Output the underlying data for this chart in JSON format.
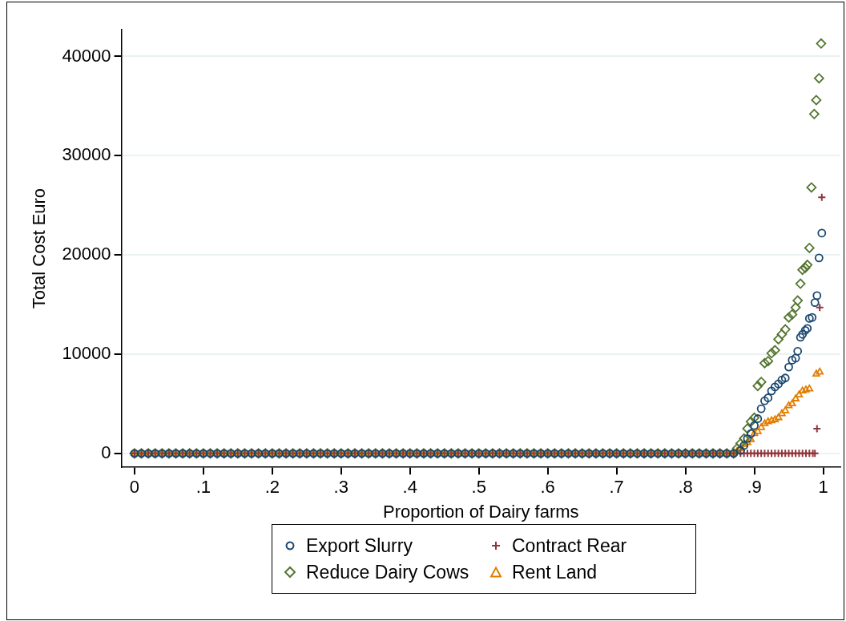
{
  "chart_data": {
    "type": "scatter",
    "xlabel": "Proportion of Dairy farms",
    "ylabel": "Total Cost Euro",
    "xlim": [
      -0.019,
      1.025
    ],
    "ylim": [
      -1400,
      42700
    ],
    "xticks": [
      0,
      {
        "value": 0.1,
        "label": ".1"
      },
      {
        "value": 0.2,
        "label": ".2"
      },
      {
        "value": 0.3,
        "label": ".3"
      },
      {
        "value": 0.4,
        "label": ".4"
      },
      {
        "value": 0.5,
        "label": ".5"
      },
      {
        "value": 0.6,
        "label": ".6"
      },
      {
        "value": 0.7,
        "label": ".7"
      },
      {
        "value": 0.8,
        "label": ".8"
      },
      {
        "value": 0.9,
        "label": ".9"
      },
      1
    ],
    "yticks": [
      0,
      10000,
      20000,
      30000,
      40000
    ],
    "grid": "y",
    "legend": "bottom",
    "series": [
      {
        "name": "Export Slurry",
        "color": "#1a476f",
        "marker": "circle",
        "x": [
          0,
          0.01,
          0.02,
          0.03,
          0.04,
          0.05,
          0.06,
          0.07,
          0.08,
          0.09,
          0.1,
          0.11,
          0.12,
          0.13,
          0.14,
          0.15,
          0.16,
          0.17,
          0.18,
          0.19,
          0.2,
          0.21,
          0.22,
          0.23,
          0.24,
          0.25,
          0.26,
          0.27,
          0.28,
          0.29,
          0.3,
          0.31,
          0.32,
          0.33,
          0.34,
          0.35,
          0.36,
          0.37,
          0.38,
          0.39,
          0.4,
          0.41,
          0.42,
          0.43,
          0.44,
          0.45,
          0.46,
          0.47,
          0.48,
          0.49,
          0.5,
          0.51,
          0.52,
          0.53,
          0.54,
          0.55,
          0.56,
          0.57,
          0.58,
          0.59,
          0.6,
          0.61,
          0.62,
          0.63,
          0.64,
          0.65,
          0.66,
          0.67,
          0.68,
          0.69,
          0.7,
          0.71,
          0.72,
          0.73,
          0.74,
          0.75,
          0.76,
          0.77,
          0.78,
          0.79,
          0.8,
          0.81,
          0.82,
          0.83,
          0.84,
          0.85,
          0.86,
          0.87,
          0.88,
          0.885,
          0.89,
          0.895,
          0.9,
          0.905,
          0.91,
          0.915,
          0.92,
          0.925,
          0.93,
          0.935,
          0.94,
          0.945,
          0.95,
          0.955,
          0.96,
          0.963,
          0.967,
          0.97,
          0.974,
          0.977,
          0.98,
          0.984,
          0.988,
          0.991,
          0.994,
          0.998
        ],
        "values": [
          0,
          0,
          0,
          0,
          0,
          0,
          0,
          0,
          0,
          0,
          0,
          0,
          0,
          0,
          0,
          0,
          0,
          0,
          0,
          0,
          0,
          0,
          0,
          0,
          0,
          0,
          0,
          0,
          0,
          0,
          0,
          0,
          0,
          0,
          0,
          0,
          0,
          0,
          0,
          0,
          0,
          0,
          0,
          0,
          0,
          0,
          0,
          0,
          0,
          0,
          0,
          0,
          0,
          0,
          0,
          0,
          0,
          0,
          0,
          0,
          0,
          0,
          0,
          0,
          0,
          0,
          0,
          0,
          0,
          0,
          0,
          0,
          0,
          0,
          0,
          0,
          0,
          0,
          0,
          0,
          0,
          0,
          0,
          0,
          0,
          0,
          0,
          0,
          300,
          800,
          1500,
          2000,
          2800,
          3500,
          4500,
          5300,
          5600,
          6300,
          6700,
          7000,
          7400,
          7600,
          8700,
          9400,
          9600,
          10300,
          11700,
          12000,
          12400,
          12600,
          13600,
          13700,
          15200,
          15900,
          19700,
          22200
        ]
      },
      {
        "name": "Reduce Dairy Cows",
        "color": "#55752f",
        "marker": "diamond",
        "x": [
          0,
          0.01,
          0.02,
          0.03,
          0.04,
          0.05,
          0.06,
          0.07,
          0.08,
          0.09,
          0.1,
          0.11,
          0.12,
          0.13,
          0.14,
          0.15,
          0.16,
          0.17,
          0.18,
          0.19,
          0.2,
          0.21,
          0.22,
          0.23,
          0.24,
          0.25,
          0.26,
          0.27,
          0.28,
          0.29,
          0.3,
          0.31,
          0.32,
          0.33,
          0.34,
          0.35,
          0.36,
          0.37,
          0.38,
          0.39,
          0.4,
          0.41,
          0.42,
          0.43,
          0.44,
          0.45,
          0.46,
          0.47,
          0.48,
          0.49,
          0.5,
          0.51,
          0.52,
          0.53,
          0.54,
          0.55,
          0.56,
          0.57,
          0.58,
          0.59,
          0.6,
          0.61,
          0.62,
          0.63,
          0.64,
          0.65,
          0.66,
          0.67,
          0.68,
          0.69,
          0.7,
          0.71,
          0.72,
          0.73,
          0.74,
          0.75,
          0.76,
          0.77,
          0.78,
          0.79,
          0.8,
          0.81,
          0.82,
          0.83,
          0.84,
          0.85,
          0.86,
          0.87,
          0.875,
          0.88,
          0.885,
          0.89,
          0.895,
          0.9,
          0.905,
          0.91,
          0.915,
          0.92,
          0.925,
          0.93,
          0.935,
          0.94,
          0.945,
          0.95,
          0.955,
          0.96,
          0.963,
          0.967,
          0.97,
          0.974,
          0.977,
          0.98,
          0.983,
          0.987,
          0.99,
          0.994,
          0.997
        ],
        "values": [
          0,
          0,
          0,
          0,
          0,
          0,
          0,
          0,
          0,
          0,
          0,
          0,
          0,
          0,
          0,
          0,
          0,
          0,
          0,
          0,
          0,
          0,
          0,
          0,
          0,
          0,
          0,
          0,
          0,
          0,
          0,
          0,
          0,
          0,
          0,
          0,
          0,
          0,
          0,
          0,
          0,
          0,
          0,
          0,
          0,
          0,
          0,
          0,
          0,
          0,
          0,
          0,
          0,
          0,
          0,
          0,
          0,
          0,
          0,
          0,
          0,
          0,
          0,
          0,
          0,
          0,
          0,
          0,
          0,
          0,
          0,
          0,
          0,
          0,
          0,
          0,
          0,
          0,
          0,
          0,
          0,
          0,
          0,
          0,
          0,
          0,
          0,
          0,
          500,
          1000,
          1500,
          2500,
          3200,
          3600,
          6800,
          7200,
          9100,
          9300,
          10100,
          10400,
          11500,
          12000,
          12500,
          13700,
          14000,
          14700,
          15400,
          17100,
          18500,
          18700,
          19000,
          20700,
          26800,
          34200,
          35600,
          37800,
          41300
        ]
      },
      {
        "name": "Contract Rear",
        "color": "#90353b",
        "marker": "cross",
        "x": [
          0,
          0.01,
          0.02,
          0.03,
          0.04,
          0.05,
          0.06,
          0.07,
          0.08,
          0.09,
          0.1,
          0.11,
          0.12,
          0.13,
          0.14,
          0.15,
          0.16,
          0.17,
          0.18,
          0.19,
          0.2,
          0.21,
          0.22,
          0.23,
          0.24,
          0.25,
          0.26,
          0.27,
          0.28,
          0.29,
          0.3,
          0.31,
          0.32,
          0.33,
          0.34,
          0.35,
          0.36,
          0.37,
          0.38,
          0.39,
          0.4,
          0.41,
          0.42,
          0.43,
          0.44,
          0.45,
          0.46,
          0.47,
          0.48,
          0.49,
          0.5,
          0.51,
          0.52,
          0.53,
          0.54,
          0.55,
          0.56,
          0.57,
          0.58,
          0.59,
          0.6,
          0.61,
          0.62,
          0.63,
          0.64,
          0.65,
          0.66,
          0.67,
          0.68,
          0.69,
          0.7,
          0.71,
          0.72,
          0.73,
          0.74,
          0.75,
          0.76,
          0.77,
          0.78,
          0.79,
          0.8,
          0.81,
          0.82,
          0.83,
          0.84,
          0.85,
          0.86,
          0.87,
          0.88,
          0.885,
          0.89,
          0.895,
          0.9,
          0.905,
          0.91,
          0.915,
          0.92,
          0.925,
          0.93,
          0.935,
          0.94,
          0.945,
          0.95,
          0.955,
          0.96,
          0.965,
          0.97,
          0.975,
          0.98,
          0.985,
          0.988,
          0.991,
          0.995,
          0.998
        ],
        "values": [
          0,
          0,
          0,
          0,
          0,
          0,
          0,
          0,
          0,
          0,
          0,
          0,
          0,
          0,
          0,
          0,
          0,
          0,
          0,
          0,
          0,
          0,
          0,
          0,
          0,
          0,
          0,
          0,
          0,
          0,
          0,
          0,
          0,
          0,
          0,
          0,
          0,
          0,
          0,
          0,
          0,
          0,
          0,
          0,
          0,
          0,
          0,
          0,
          0,
          0,
          0,
          0,
          0,
          0,
          0,
          0,
          0,
          0,
          0,
          0,
          0,
          0,
          0,
          0,
          0,
          0,
          0,
          0,
          0,
          0,
          0,
          0,
          0,
          0,
          0,
          0,
          0,
          0,
          0,
          0,
          0,
          0,
          0,
          0,
          0,
          0,
          0,
          0,
          0,
          0,
          0,
          0,
          0,
          0,
          0,
          0,
          0,
          0,
          0,
          0,
          0,
          0,
          0,
          0,
          0,
          0,
          0,
          0,
          0,
          0,
          0,
          2500,
          14700,
          25800
        ]
      },
      {
        "name": "Rent Land",
        "color": "#e37e00",
        "marker": "triangle",
        "x": [
          0,
          0.01,
          0.02,
          0.03,
          0.04,
          0.05,
          0.06,
          0.07,
          0.08,
          0.09,
          0.1,
          0.11,
          0.12,
          0.13,
          0.14,
          0.15,
          0.16,
          0.17,
          0.18,
          0.19,
          0.2,
          0.21,
          0.22,
          0.23,
          0.24,
          0.25,
          0.26,
          0.27,
          0.28,
          0.29,
          0.3,
          0.31,
          0.32,
          0.33,
          0.34,
          0.35,
          0.36,
          0.37,
          0.38,
          0.39,
          0.4,
          0.41,
          0.42,
          0.43,
          0.44,
          0.45,
          0.46,
          0.47,
          0.48,
          0.49,
          0.5,
          0.51,
          0.52,
          0.53,
          0.54,
          0.55,
          0.56,
          0.57,
          0.58,
          0.59,
          0.6,
          0.61,
          0.62,
          0.63,
          0.64,
          0.65,
          0.66,
          0.67,
          0.68,
          0.69,
          0.7,
          0.71,
          0.72,
          0.73,
          0.74,
          0.75,
          0.76,
          0.77,
          0.78,
          0.79,
          0.8,
          0.81,
          0.82,
          0.83,
          0.84,
          0.85,
          0.86,
          0.87,
          0.875,
          0.88,
          0.885,
          0.89,
          0.895,
          0.9,
          0.905,
          0.91,
          0.915,
          0.92,
          0.925,
          0.93,
          0.935,
          0.94,
          0.945,
          0.95,
          0.955,
          0.96,
          0.965,
          0.97,
          0.975,
          0.98,
          0.99,
          0.995
        ],
        "values": [
          0,
          0,
          0,
          0,
          0,
          0,
          0,
          0,
          0,
          0,
          0,
          0,
          0,
          0,
          0,
          0,
          0,
          0,
          0,
          0,
          0,
          0,
          0,
          0,
          0,
          0,
          0,
          0,
          0,
          0,
          0,
          0,
          0,
          0,
          0,
          0,
          0,
          0,
          0,
          0,
          0,
          0,
          0,
          0,
          0,
          0,
          0,
          0,
          0,
          0,
          0,
          0,
          0,
          0,
          0,
          0,
          0,
          0,
          0,
          0,
          0,
          0,
          0,
          0,
          0,
          0,
          0,
          0,
          0,
          0,
          0,
          0,
          0,
          0,
          0,
          0,
          0,
          0,
          0,
          0,
          0,
          0,
          0,
          0,
          0,
          0,
          0,
          0,
          200,
          500,
          900,
          1100,
          1400,
          2000,
          2200,
          2600,
          3000,
          3200,
          3300,
          3400,
          3600,
          4000,
          4300,
          4800,
          5000,
          5500,
          5900,
          6300,
          6400,
          6500,
          8000,
          8200
        ]
      }
    ]
  }
}
